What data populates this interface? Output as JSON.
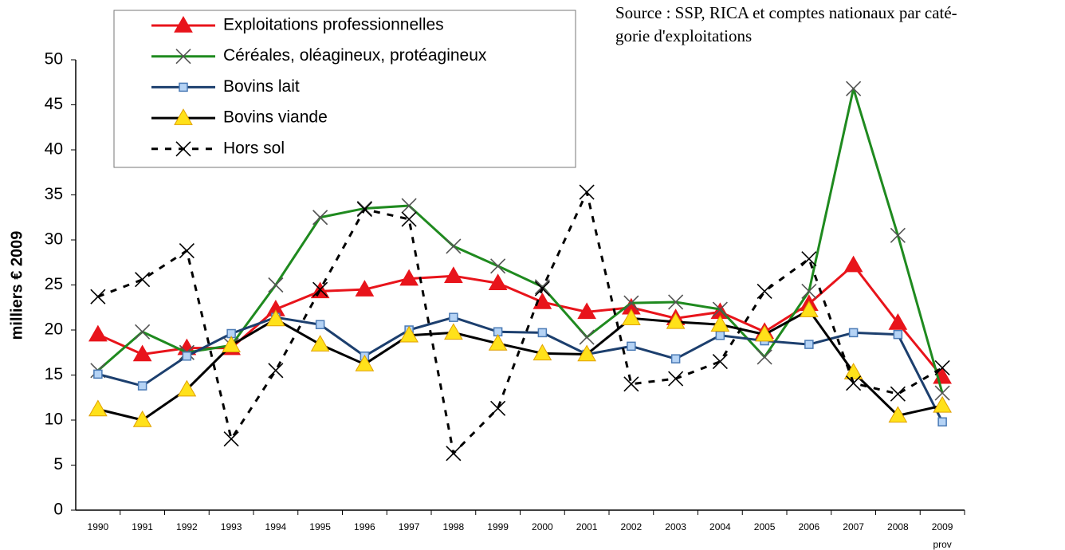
{
  "chart_data": {
    "type": "line",
    "source": [
      "Source : SSP, RICA et comptes nationaux par caté-",
      "gorie d'exploitations"
    ],
    "y_label": "milliers € 2009",
    "categories": [
      "1990",
      "1991",
      "1992",
      "1993",
      "1994",
      "1995",
      "1996",
      "1997",
      "1998",
      "1999",
      "2000",
      "2001",
      "2002",
      "2003",
      "2004",
      "2005",
      "2006",
      "2007",
      "2008",
      "2009"
    ],
    "x_note": "prov",
    "ylim": [
      0,
      50
    ],
    "yticks": [
      0,
      5,
      10,
      15,
      20,
      25,
      30,
      35,
      40,
      45,
      50
    ],
    "grid": false,
    "legend": "top-left",
    "series": [
      {
        "name": "Exploitations professionnelles",
        "color": "#e8141b",
        "marker": "triangle",
        "marker_fill": "#e8141b",
        "dashed": false,
        "values": [
          19.5,
          17.3,
          18.0,
          18.0,
          22.3,
          24.3,
          24.5,
          25.7,
          26.0,
          25.2,
          23.1,
          22.0,
          22.5,
          21.3,
          22.0,
          19.8,
          22.9,
          27.2,
          20.8,
          14.8
        ]
      },
      {
        "name": "Céréales, oléagineux, protéagineux",
        "color": "#1f8a1f",
        "marker": "x",
        "marker_fill": "#555555",
        "dashed": false,
        "values": [
          15.5,
          19.8,
          17.5,
          18.3,
          25.0,
          32.5,
          33.5,
          33.8,
          29.3,
          27.1,
          24.8,
          19.2,
          23.0,
          23.1,
          22.3,
          17.0,
          24.3,
          46.8,
          30.5,
          13.0
        ]
      },
      {
        "name": "Bovins lait",
        "color": "#1c3f6e",
        "marker": "square",
        "marker_fill": "#b5d3f5",
        "dashed": false,
        "values": [
          15.1,
          13.8,
          17.1,
          19.6,
          21.4,
          20.6,
          17.1,
          20.0,
          21.4,
          19.8,
          19.7,
          17.3,
          18.2,
          16.8,
          19.4,
          18.8,
          18.4,
          19.7,
          19.5,
          9.8
        ]
      },
      {
        "name": "Bovins viande",
        "color": "#000000",
        "marker": "triangle",
        "marker_fill": "#ffe11a",
        "dashed": false,
        "values": [
          11.2,
          10.0,
          13.4,
          18.3,
          21.2,
          18.4,
          16.2,
          19.4,
          19.7,
          18.5,
          17.4,
          17.3,
          21.3,
          20.9,
          20.6,
          19.5,
          22.2,
          15.3,
          10.5,
          11.6
        ]
      },
      {
        "name": "Hors sol",
        "color": "#000000",
        "marker": "x",
        "marker_fill": "#000000",
        "dashed": true,
        "values": [
          23.7,
          25.6,
          28.8,
          7.9,
          15.5,
          24.5,
          33.4,
          32.3,
          6.3,
          11.3,
          24.6,
          35.3,
          14.0,
          14.6,
          16.5,
          24.3,
          27.9,
          14.1,
          12.9,
          15.8
        ]
      }
    ]
  }
}
